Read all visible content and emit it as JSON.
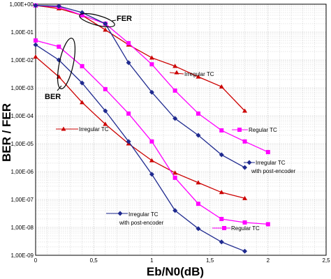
{
  "chart_data": {
    "type": "line",
    "xlabel": "Eb/N0(dB)",
    "ylabel": "BER / FER",
    "x_ticks": [
      "0",
      "0,5",
      "1",
      "1,5",
      "2",
      "2,5"
    ],
    "y_ticks": [
      "1,00E-09",
      "1,00E-08",
      "1,00E-07",
      "1,00E-06",
      "1,00E-05",
      "1,00E-04",
      "1,00E-03",
      "1,00E-02",
      "1,00E-01",
      "1,00E+00"
    ],
    "xlim": [
      0,
      2.5
    ],
    "ylim": [
      1e-09,
      1
    ],
    "y_scale": "log",
    "grid": true,
    "series": [
      {
        "color": "#cc0000",
        "marker": "triangle",
        "x": [
          0,
          0.2,
          0.4,
          0.6,
          0.8,
          1.0,
          1.2,
          1.4,
          1.6,
          1.8
        ],
        "y": [
          0.9,
          0.7,
          0.4,
          0.12,
          0.035,
          0.012,
          0.006,
          0.0025,
          0.0011,
          0.00015
        ]
      },
      {
        "color": "#ff00ff",
        "marker": "square",
        "x": [
          0,
          0.2,
          0.4,
          0.6,
          0.8,
          1.0,
          1.2,
          1.4,
          1.6,
          1.8,
          2.0
        ],
        "y": [
          0.9,
          0.8,
          0.4,
          0.2,
          0.04,
          0.007,
          0.0008,
          0.00012,
          3e-05,
          1.2e-05,
          5e-06
        ]
      },
      {
        "color": "#1f2a8f",
        "marker": "diamond",
        "x": [
          0,
          0.2,
          0.4,
          0.6,
          0.8,
          1.0,
          1.2,
          1.4,
          1.6,
          1.8
        ],
        "y": [
          0.9,
          0.85,
          0.5,
          0.2,
          0.008,
          0.0007,
          8e-05,
          2e-05,
          4e-06,
          1.4e-06
        ]
      },
      {
        "color": "#cc0000",
        "marker": "triangle",
        "x": [
          0,
          0.2,
          0.4,
          0.6,
          0.8,
          1.0,
          1.2,
          1.4,
          1.6,
          1.8
        ],
        "y": [
          0.013,
          0.0025,
          0.0003,
          5e-05,
          1e-05,
          2.5e-06,
          9e-07,
          4e-07,
          1.8e-07,
          1.1e-07
        ]
      },
      {
        "color": "#ff00ff",
        "marker": "square",
        "x": [
          0,
          0.2,
          0.4,
          0.6,
          0.8,
          1.0,
          1.2,
          1.4,
          1.6,
          1.8,
          2.0
        ],
        "y": [
          0.05,
          0.03,
          0.006,
          0.0009,
          0.00012,
          1.2e-05,
          6e-07,
          7e-08,
          2e-08,
          1.5e-08,
          1.3e-08
        ]
      },
      {
        "color": "#1f2a8f",
        "marker": "diamond",
        "x": [
          0,
          0.2,
          0.4,
          0.6,
          0.8,
          1.0,
          1.2,
          1.4,
          1.6,
          1.8
        ],
        "y": [
          0.035,
          0.01,
          0.0015,
          0.00015,
          1.2e-05,
          8e-07,
          4e-08,
          9e-09,
          3e-09,
          1.4e-09
        ]
      }
    ],
    "annotations": [
      {
        "text": "FER",
        "style": "big"
      },
      {
        "text": "BER",
        "style": "big"
      },
      {
        "text": "Irregular TC"
      },
      {
        "text": "Regular TC"
      },
      {
        "text": "Irregular TC"
      },
      {
        "text": "with post-encoder"
      },
      {
        "text": "Irregular TC"
      },
      {
        "text": "Irregular TC"
      },
      {
        "text": "with post-encoder"
      },
      {
        "text": "Regular TC"
      }
    ]
  }
}
